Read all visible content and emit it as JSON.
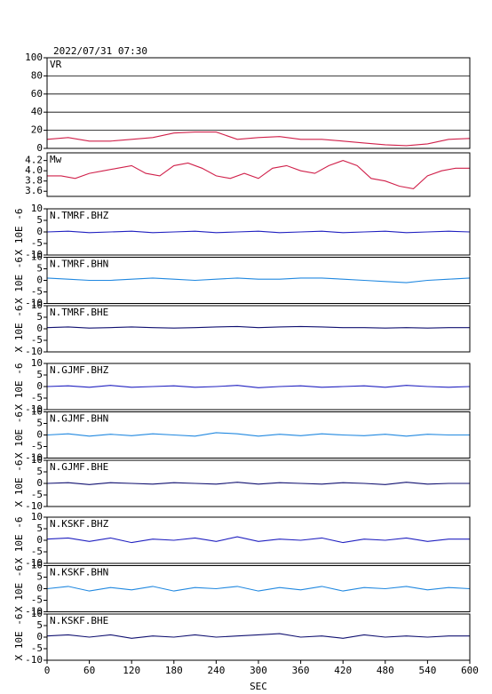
{
  "chart_data": [
    {
      "type": "line",
      "title": "2022/07/31 07:30",
      "panel_label": "VR",
      "xlim": [
        0,
        600
      ],
      "ylim": [
        0,
        100
      ],
      "yticks": [
        0,
        20,
        40,
        60,
        80,
        100
      ],
      "grid": true,
      "x": [
        0,
        30,
        60,
        90,
        120,
        150,
        180,
        210,
        240,
        270,
        300,
        330,
        360,
        390,
        420,
        450,
        480,
        510,
        540,
        570,
        600
      ],
      "series": [
        {
          "color": "#d0204a",
          "values": [
            10,
            12,
            8,
            8,
            10,
            12,
            17,
            18,
            18,
            10,
            12,
            13,
            10,
            10,
            8,
            6,
            4,
            3,
            5,
            10,
            11
          ]
        }
      ]
    },
    {
      "type": "line",
      "panel_label": "Mw",
      "xlim": [
        0,
        600
      ],
      "ylim": [
        3.5,
        4.35
      ],
      "yticks": [
        3.6,
        3.8,
        {
          "value": 4,
          "label": "4.0"
        },
        4.2
      ],
      "x": [
        0,
        20,
        40,
        60,
        80,
        100,
        120,
        140,
        160,
        180,
        200,
        220,
        240,
        260,
        280,
        300,
        320,
        340,
        360,
        380,
        400,
        420,
        440,
        460,
        480,
        500,
        520,
        540,
        560,
        580,
        600
      ],
      "series": [
        {
          "color": "#d0204a",
          "values": [
            3.9,
            3.9,
            3.85,
            3.95,
            4.0,
            4.05,
            4.1,
            3.95,
            3.9,
            4.1,
            4.15,
            4.05,
            3.9,
            3.85,
            3.95,
            3.85,
            4.05,
            4.1,
            4.0,
            3.95,
            4.1,
            4.2,
            4.1,
            3.85,
            3.8,
            3.7,
            3.65,
            3.9,
            4.0,
            4.05,
            4.05
          ]
        }
      ]
    },
    {
      "type": "line",
      "panel_label": "N.TMRF.BHZ",
      "ylabel": "X 10E -6",
      "xlim": [
        0,
        600
      ],
      "ylim": [
        -10,
        10
      ],
      "yticks": [
        -10,
        -5,
        0,
        5,
        10
      ],
      "x": [
        0,
        30,
        60,
        90,
        120,
        150,
        180,
        210,
        240,
        270,
        300,
        330,
        360,
        390,
        420,
        450,
        480,
        510,
        540,
        570,
        600
      ],
      "series": [
        {
          "color": "#2020c0",
          "values": [
            0,
            0.3,
            -0.3,
            0,
            0.3,
            -0.3,
            0,
            0.3,
            -0.3,
            0,
            0.3,
            -0.3,
            0,
            0.3,
            -0.3,
            0,
            0.3,
            -0.3,
            0,
            0.3,
            0
          ]
        }
      ]
    },
    {
      "type": "line",
      "panel_label": "N.TMRF.BHN",
      "ylabel": "X 10E -6",
      "xlim": [
        0,
        600
      ],
      "ylim": [
        -10,
        10
      ],
      "yticks": [
        -10,
        -5,
        0,
        5,
        10
      ],
      "x": [
        0,
        30,
        60,
        90,
        120,
        150,
        180,
        210,
        240,
        270,
        300,
        330,
        360,
        390,
        420,
        450,
        480,
        510,
        540,
        570,
        600
      ],
      "series": [
        {
          "color": "#2088e0",
          "values": [
            1,
            0.5,
            0,
            0,
            0.5,
            1,
            0.5,
            0,
            0.5,
            1,
            0.5,
            0.5,
            1,
            1,
            0.5,
            0,
            -0.5,
            -1,
            0,
            0.5,
            1
          ]
        }
      ]
    },
    {
      "type": "line",
      "panel_label": "N.TMRF.BHE",
      "ylabel": "X 10E -6",
      "xlim": [
        0,
        600
      ],
      "ylim": [
        -10,
        10
      ],
      "yticks": [
        -10,
        -5,
        0,
        5,
        10
      ],
      "x": [
        0,
        30,
        60,
        90,
        120,
        150,
        180,
        210,
        240,
        270,
        300,
        330,
        360,
        390,
        420,
        450,
        480,
        510,
        540,
        570,
        600
      ],
      "series": [
        {
          "color": "#101070",
          "values": [
            0.5,
            0.8,
            0.3,
            0.5,
            0.8,
            0.5,
            0.3,
            0.5,
            0.8,
            1,
            0.5,
            0.8,
            1,
            0.8,
            0.5,
            0.5,
            0.3,
            0.5,
            0.3,
            0.5,
            0.5
          ]
        }
      ]
    },
    {
      "type": "line",
      "panel_label": "N.GJMF.BHZ",
      "ylabel": "X 10E -6",
      "xlim": [
        0,
        600
      ],
      "ylim": [
        -10,
        10
      ],
      "yticks": [
        -10,
        -5,
        0,
        5,
        10
      ],
      "x": [
        0,
        30,
        60,
        90,
        120,
        150,
        180,
        210,
        240,
        270,
        300,
        330,
        360,
        390,
        420,
        450,
        480,
        510,
        540,
        570,
        600
      ],
      "series": [
        {
          "color": "#2020c0",
          "values": [
            0,
            0.3,
            -0.3,
            0.5,
            -0.3,
            0,
            0.3,
            -0.3,
            0,
            0.5,
            -0.5,
            0,
            0.3,
            -0.3,
            0,
            0.3,
            -0.3,
            0.5,
            0,
            -0.3,
            0
          ]
        }
      ]
    },
    {
      "type": "line",
      "panel_label": "N.GJMF.BHN",
      "ylabel": "X 10E -6",
      "xlim": [
        0,
        600
      ],
      "ylim": [
        -10,
        10
      ],
      "yticks": [
        -10,
        -5,
        0,
        5,
        10
      ],
      "x": [
        0,
        30,
        60,
        90,
        120,
        150,
        180,
        210,
        240,
        270,
        300,
        330,
        360,
        390,
        420,
        450,
        480,
        510,
        540,
        570,
        600
      ],
      "series": [
        {
          "color": "#2088e0",
          "values": [
            0,
            0.5,
            -0.5,
            0.3,
            -0.3,
            0.5,
            0,
            -0.5,
            1,
            0.5,
            -0.5,
            0.3,
            -0.3,
            0.5,
            0,
            -0.3,
            0.3,
            -0.5,
            0.3,
            0,
            0
          ]
        }
      ]
    },
    {
      "type": "line",
      "panel_label": "N.GJMF.BHE",
      "ylabel": "X 10E -6",
      "xlim": [
        0,
        600
      ],
      "ylim": [
        -10,
        10
      ],
      "yticks": [
        -10,
        -5,
        0,
        5,
        10
      ],
      "x": [
        0,
        30,
        60,
        90,
        120,
        150,
        180,
        210,
        240,
        270,
        300,
        330,
        360,
        390,
        420,
        450,
        480,
        510,
        540,
        570,
        600
      ],
      "series": [
        {
          "color": "#101070",
          "values": [
            0,
            0.3,
            -0.5,
            0.3,
            0,
            -0.3,
            0.3,
            0,
            -0.3,
            0.5,
            -0.3,
            0.3,
            0,
            -0.3,
            0.3,
            0,
            -0.5,
            0.5,
            -0.3,
            0,
            0
          ]
        }
      ]
    },
    {
      "type": "line",
      "panel_label": "N.KSKF.BHZ",
      "ylabel": "X 10E -6",
      "xlim": [
        0,
        600
      ],
      "ylim": [
        -10,
        10
      ],
      "yticks": [
        -10,
        -5,
        0,
        5,
        10
      ],
      "x": [
        0,
        30,
        60,
        90,
        120,
        150,
        180,
        210,
        240,
        270,
        300,
        330,
        360,
        390,
        420,
        450,
        480,
        510,
        540,
        570,
        600
      ],
      "series": [
        {
          "color": "#2020c0",
          "values": [
            0.5,
            1,
            -0.5,
            1,
            -1,
            0.5,
            0,
            1,
            -0.5,
            1.5,
            -0.5,
            0.5,
            0,
            1,
            -1,
            0.5,
            0,
            1,
            -0.5,
            0.5,
            0.5
          ]
        }
      ]
    },
    {
      "type": "line",
      "panel_label": "N.KSKF.BHN",
      "ylabel": "X 10E -6",
      "xlim": [
        0,
        600
      ],
      "ylim": [
        -10,
        10
      ],
      "yticks": [
        -10,
        -5,
        0,
        5,
        10
      ],
      "x": [
        0,
        30,
        60,
        90,
        120,
        150,
        180,
        210,
        240,
        270,
        300,
        330,
        360,
        390,
        420,
        450,
        480,
        510,
        540,
        570,
        600
      ],
      "series": [
        {
          "color": "#2088e0",
          "values": [
            0,
            1,
            -1,
            0.5,
            -0.5,
            1,
            -1,
            0.5,
            0,
            1,
            -1,
            0.5,
            -0.5,
            1,
            -1,
            0.5,
            0,
            1,
            -0.5,
            0.5,
            0
          ]
        }
      ]
    },
    {
      "type": "line",
      "panel_label": "N.KSKF.BHE",
      "ylabel": "X 10E -6",
      "xlim": [
        0,
        600
      ],
      "ylim": [
        -10,
        10
      ],
      "yticks": [
        -10,
        -5,
        0,
        5,
        10
      ],
      "x": [
        0,
        30,
        60,
        90,
        120,
        150,
        180,
        210,
        240,
        270,
        300,
        330,
        360,
        390,
        420,
        450,
        480,
        510,
        540,
        570,
        600
      ],
      "series": [
        {
          "color": "#101070",
          "values": [
            0.5,
            1,
            0,
            1,
            -0.5,
            0.5,
            0,
            1,
            0,
            0.5,
            1,
            1.5,
            0,
            0.5,
            -0.5,
            1,
            0,
            0.5,
            0,
            0.5,
            0.5
          ]
        }
      ],
      "xticks": [
        0,
        60,
        120,
        180,
        240,
        300,
        360,
        420,
        480,
        540,
        600
      ],
      "xlabel": "SEC"
    }
  ]
}
